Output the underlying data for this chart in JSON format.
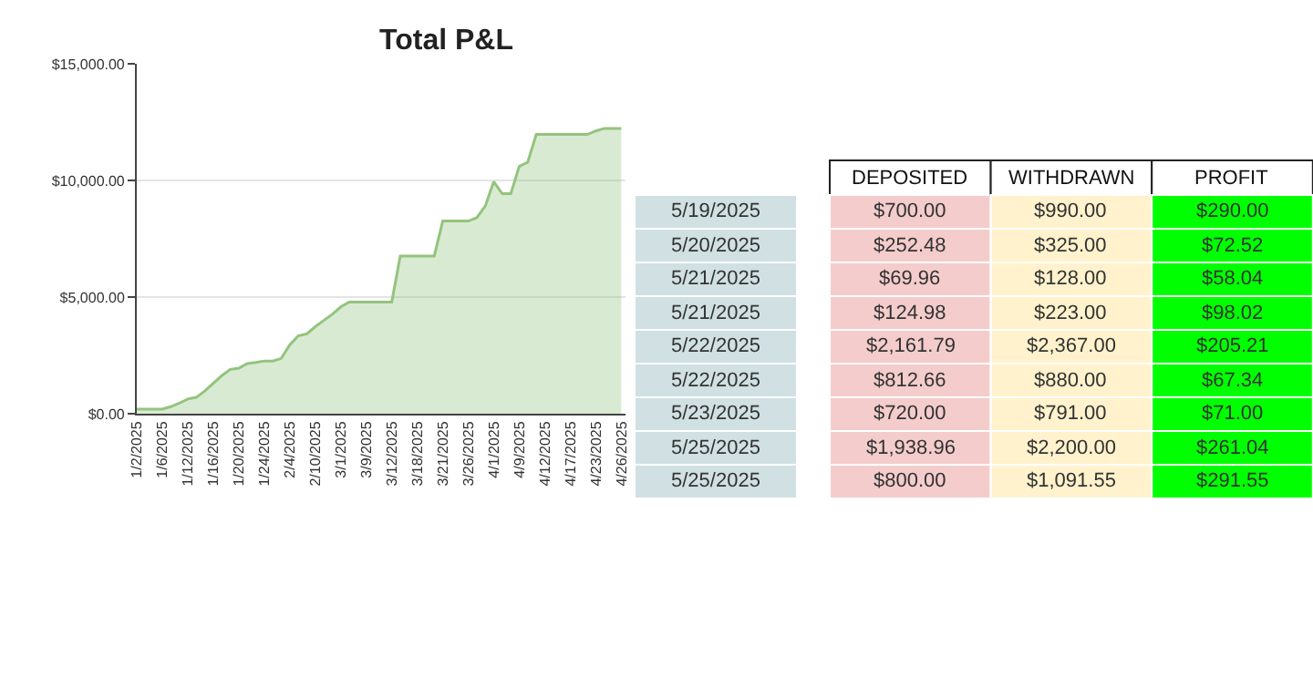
{
  "chart_data": [
    {
      "type": "area",
      "title": "Total P&L",
      "categories": [
        "1/2/2025",
        null,
        null,
        "1/6/2025",
        null,
        null,
        "1/12/2025",
        null,
        null,
        "1/16/2025",
        null,
        null,
        "1/20/2025",
        null,
        null,
        "1/24/2025",
        null,
        null,
        "2/4/2025",
        null,
        null,
        "2/10/2025",
        null,
        null,
        "3/1/2025",
        null,
        null,
        "3/9/2025",
        null,
        null,
        "3/12/2025",
        null,
        null,
        "3/18/2025",
        null,
        null,
        "3/21/2025",
        null,
        null,
        "3/26/2025",
        null,
        null,
        "4/1/2025",
        null,
        null,
        "4/9/2025",
        null,
        null,
        "4/12/2025",
        null,
        null,
        "4/17/2025",
        null,
        null,
        "4/23/2025",
        null,
        null,
        "4/26/2025"
      ],
      "series": [
        {
          "color": "#93c47d",
          "values": [
            200,
            200,
            200,
            200,
            300,
            450,
            630,
            700,
            970,
            1300,
            1630,
            1900,
            1950,
            2150,
            2200,
            2260,
            2260,
            2370,
            2950,
            3340,
            3420,
            3730,
            4000,
            4260,
            4580,
            4790,
            4790,
            4790,
            4790,
            4790,
            4790,
            6760,
            6760,
            6760,
            6760,
            6760,
            8260,
            8260,
            8260,
            8260,
            8400,
            8900,
            9950,
            9430,
            9430,
            10600,
            10780,
            11970,
            11970,
            11970,
            11970,
            11970,
            11970,
            11970,
            12120,
            12230,
            12230,
            12230
          ]
        }
      ],
      "ylim": [
        0,
        15000
      ],
      "yticks": [
        {
          "value": 0,
          "label": "$0.00"
        },
        {
          "value": 5000,
          "label": "$5,000.00"
        },
        {
          "value": 10000,
          "label": "$10,000.00"
        },
        {
          "value": 15000,
          "label": "$15,000.00"
        }
      ],
      "grid": "y"
    },
    {
      "type": "other",
      "categories": [
        "5/19/2025",
        "5/20/2025",
        "5/21/2025",
        "5/21/2025",
        "5/22/2025",
        "5/22/2025",
        "5/23/2025",
        "5/25/2025",
        "5/25/2025"
      ],
      "series": [
        {
          "name": "DEPOSITED",
          "color": "#f4cccc",
          "values": [
            700.0,
            252.48,
            69.96,
            124.98,
            2161.79,
            812.66,
            720.0,
            1938.96,
            800.0
          ],
          "value_labels": [
            "$700.00",
            "$252.48",
            "$69.96",
            "$124.98",
            "$2,161.79",
            "$812.66",
            "$720.00",
            "$1,938.96",
            "$800.00"
          ]
        },
        {
          "name": "WITHDRAWN",
          "color": "#fff2cc",
          "values": [
            990.0,
            325.0,
            128.0,
            223.0,
            2367.0,
            880.0,
            791.0,
            2200.0,
            1091.55
          ],
          "value_labels": [
            "$990.00",
            "$325.00",
            "$128.00",
            "$223.00",
            "$2,367.00",
            "$880.00",
            "$791.00",
            "$2,200.00",
            "$1,091.55"
          ]
        },
        {
          "name": "PROFIT",
          "color": "#00ff00",
          "values": [
            290.0,
            72.52,
            58.04,
            98.02,
            205.21,
            67.34,
            71.0,
            261.04,
            291.55
          ],
          "value_labels": [
            "$290.00",
            "$72.52",
            "$58.04",
            "$98.02",
            "$205.21",
            "$67.34",
            "$71.00",
            "$261.04",
            "$291.55"
          ]
        }
      ]
    }
  ]
}
